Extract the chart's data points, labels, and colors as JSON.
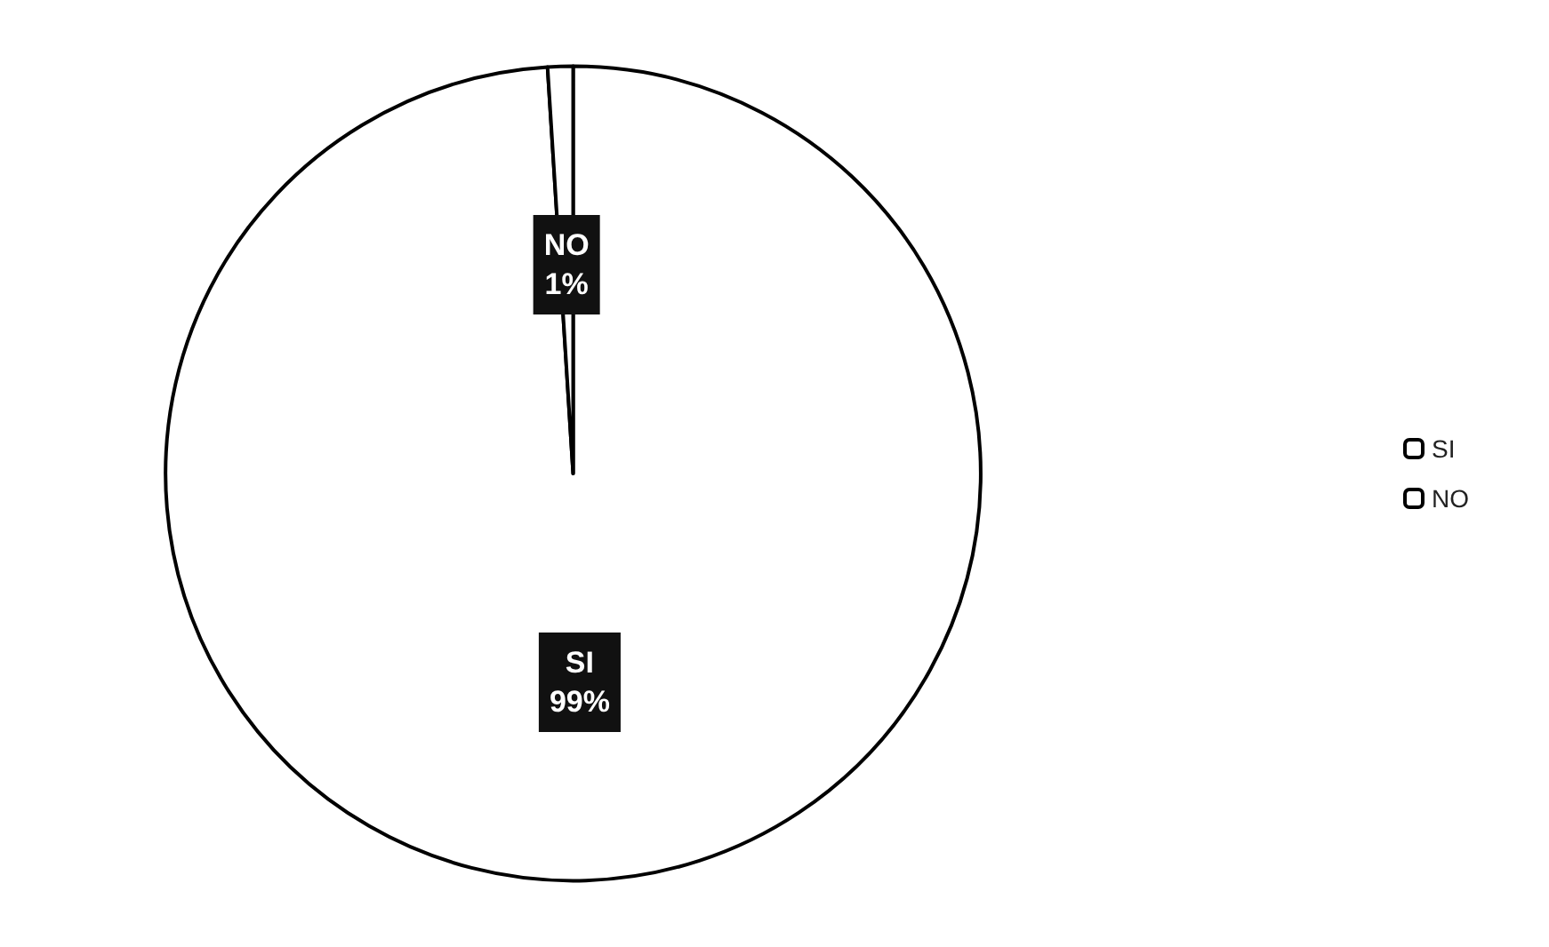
{
  "chart_data": {
    "type": "pie",
    "categories": [
      "SI",
      "NO"
    ],
    "values": [
      99,
      1
    ],
    "colors": [
      "#ffffff",
      "#ffffff"
    ],
    "value_labels": [
      "99%",
      "1%"
    ],
    "legend": "right"
  }
}
